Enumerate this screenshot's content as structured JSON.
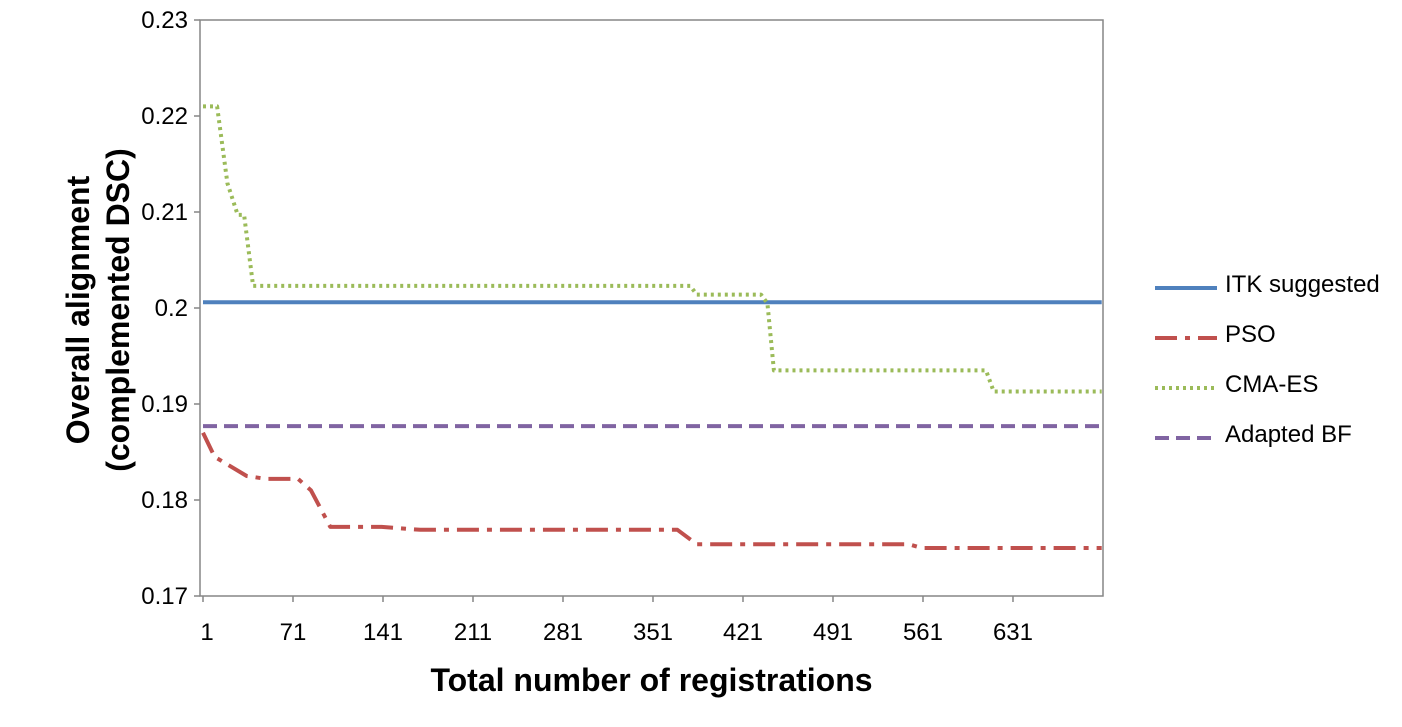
{
  "chart_data": {
    "type": "line",
    "xlabel": "Total number of registrations",
    "ylabel_line1": "Overall alignment",
    "ylabel_line2": "(complemented DSC)",
    "ylim": [
      0.17,
      0.23
    ],
    "xlim": [
      1,
      700
    ],
    "yticks": [
      "0.23",
      "0.22",
      "0.21",
      "0.2",
      "0.19",
      "0.18",
      "0.17"
    ],
    "ytick_values": [
      0.23,
      0.22,
      0.21,
      0.2,
      0.19,
      0.18,
      0.17
    ],
    "xticks": [
      "1",
      "71",
      "141",
      "211",
      "281",
      "351",
      "421",
      "491",
      "561",
      "631"
    ],
    "xtick_values": [
      1,
      71,
      141,
      211,
      281,
      351,
      421,
      491,
      561,
      631
    ],
    "grid": false,
    "legend_position": "right",
    "series": [
      {
        "name": "ITK suggested",
        "color": "#4F81BD",
        "style": "solid",
        "x": [
          1,
          700
        ],
        "y": [
          0.2006,
          0.2006
        ]
      },
      {
        "name": "PSO",
        "color": "#C0504D",
        "style": "dashdot",
        "x": [
          1,
          10,
          35,
          50,
          75,
          85,
          100,
          140,
          170,
          180,
          370,
          385,
          550,
          560,
          700
        ],
        "y": [
          0.187,
          0.1845,
          0.1825,
          0.1822,
          0.1822,
          0.181,
          0.1772,
          0.1772,
          0.1769,
          0.1769,
          0.1769,
          0.1754,
          0.1754,
          0.175,
          0.175
        ]
      },
      {
        "name": "CMA-ES",
        "color": "#9BBB59",
        "style": "dotted",
        "x": [
          1,
          12,
          20,
          28,
          33,
          40,
          380,
          385,
          435,
          440,
          445,
          610,
          616,
          700
        ],
        "y": [
          0.221,
          0.221,
          0.213,
          0.2097,
          0.2097,
          0.2023,
          0.2023,
          0.2014,
          0.2014,
          0.2005,
          0.1935,
          0.1935,
          0.1913,
          0.1913
        ]
      },
      {
        "name": "Adapted BF",
        "color": "#8064A2",
        "style": "dashed",
        "x": [
          1,
          700
        ],
        "y": [
          0.1877,
          0.1877
        ]
      }
    ]
  }
}
